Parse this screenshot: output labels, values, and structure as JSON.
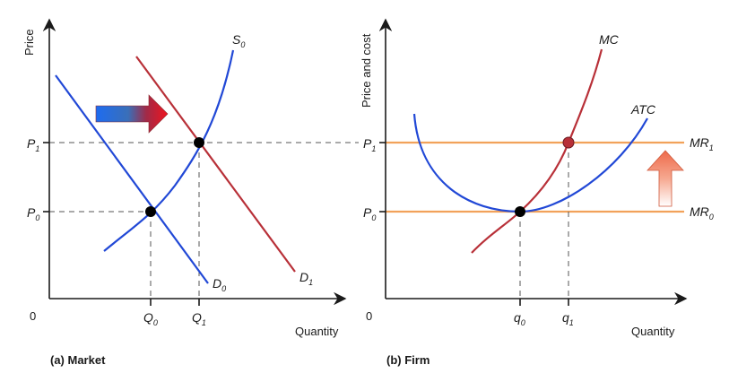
{
  "market": {
    "y_axis_title": "Price",
    "x_axis_title": "Quantity",
    "origin": "0",
    "caption": "(a) Market",
    "supply": {
      "sym": "S",
      "sub": "0"
    },
    "demand_initial": {
      "sym": "D",
      "sub": "0"
    },
    "demand_new": {
      "sym": "D",
      "sub": "1"
    },
    "price_high": {
      "sym": "P",
      "sub": "1"
    },
    "price_low": {
      "sym": "P",
      "sub": "0"
    },
    "qty_low": {
      "sym": "Q",
      "sub": "0"
    },
    "qty_high": {
      "sym": "Q",
      "sub": "1"
    }
  },
  "firm": {
    "y_axis_title": "Price and cost",
    "x_axis_title": "Quantity",
    "origin": "0",
    "caption": "(b) Firm",
    "mc": "MC",
    "atc": "ATC",
    "mr_high": {
      "sym": "MR",
      "sub": "1"
    },
    "mr_low": {
      "sym": "MR",
      "sub": "0"
    },
    "price_high": {
      "sym": "P",
      "sub": "1"
    },
    "price_low": {
      "sym": "P",
      "sub": "0"
    },
    "qty_low": {
      "sym": "q",
      "sub": "0"
    },
    "qty_high": {
      "sym": "q",
      "sub": "1"
    }
  },
  "colors": {
    "axis": "#1a1a1a",
    "supply": "#2148d6",
    "demand_initial": "#2148d6",
    "demand_new": "#b83038",
    "mc": "#b83038",
    "atc": "#2148d6",
    "mr": "#f2a25a",
    "guide": "#555555",
    "point": "#000000",
    "point_firm_high": "#b83038"
  },
  "icons": {
    "shift_right": "demand-shift-right-arrow-icon",
    "shift_up": "revenue-shift-up-arrow-icon"
  }
}
